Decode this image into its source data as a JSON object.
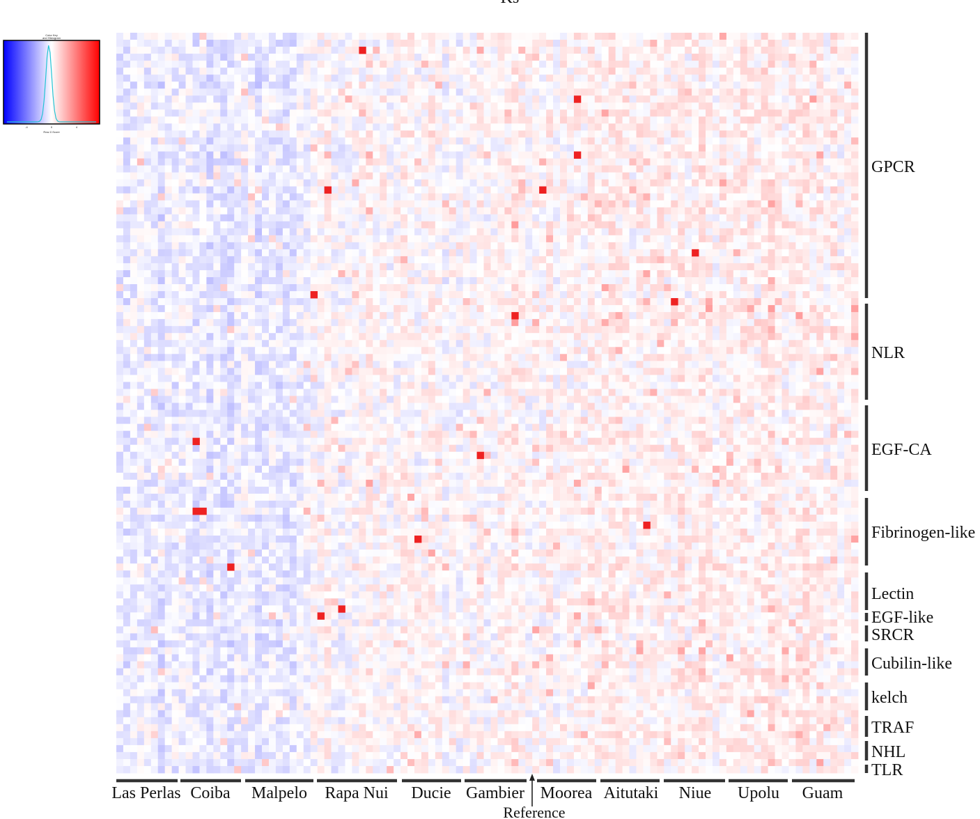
{
  "chart_data": {
    "type": "heatmap",
    "title": "Ks",
    "color_scale": {
      "low": "#0000ff",
      "mid": "#ffffff",
      "high": "#ff0000",
      "histogram_color": "#22c4d4"
    },
    "color_key": {
      "title": "Color Key",
      "subtitle": "and Histogram",
      "xlabel": "Row Z-Score",
      "ticks": [
        "-4",
        "0",
        "4"
      ]
    },
    "columns": [
      "Las Perlas",
      "Coiba",
      "Malpelo",
      "Rapa Nui",
      "Ducie",
      "Gambier",
      "Moorea",
      "Aitutaki",
      "Niue",
      "Upolu",
      "Guam"
    ],
    "reference_label": "Reference",
    "gene_families": [
      "GPCR",
      "NLR",
      "EGF-CA",
      "Fibrinogen-like",
      "Lectin",
      "EGF-like",
      "SRCR",
      "Cubilin-like",
      "kelch",
      "TRAF",
      "NHL",
      "TLR"
    ],
    "grid": {
      "columns": 107,
      "rows": 106,
      "value_range": [
        -4,
        4
      ]
    }
  }
}
